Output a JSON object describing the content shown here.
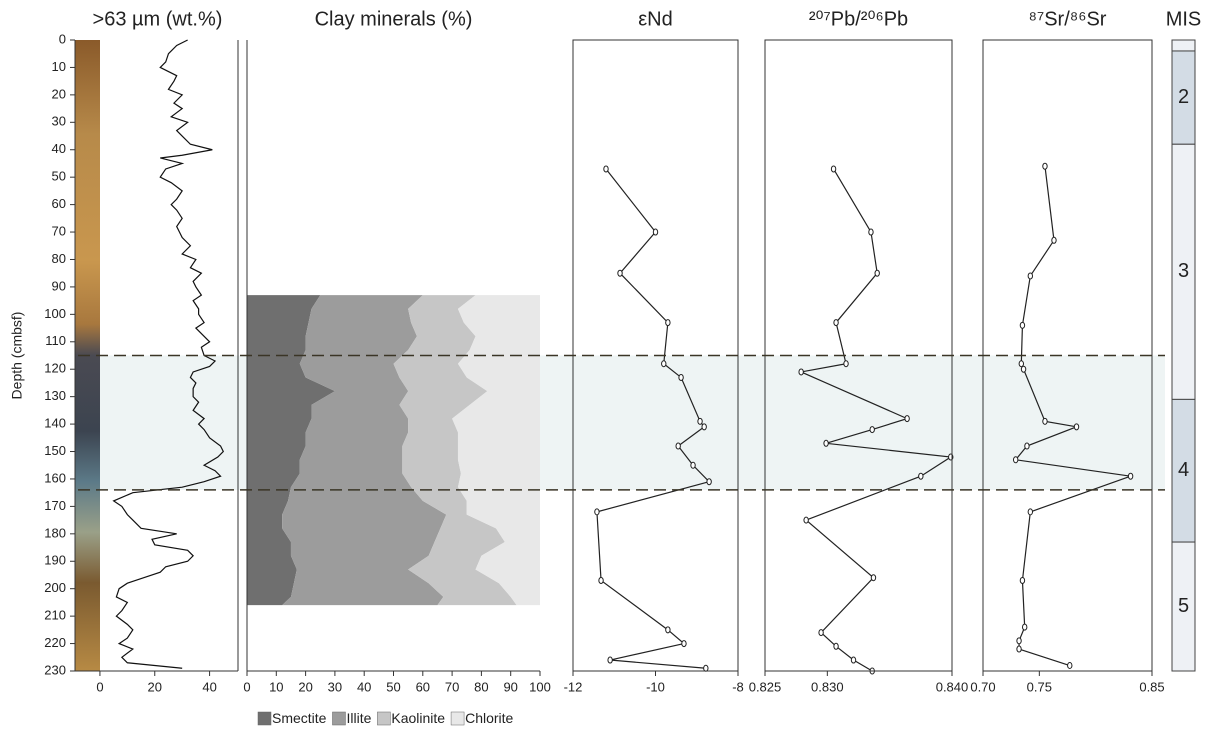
{
  "band": [
    115,
    164
  ],
  "chart_data": [
    {
      "type": "line",
      "title": ">63 µm (wt.%)",
      "y_label": "Depth (cmbsf)",
      "ylim": [
        0,
        230
      ],
      "yticks": [
        0,
        10,
        20,
        30,
        40,
        50,
        60,
        70,
        80,
        90,
        100,
        110,
        120,
        130,
        140,
        150,
        160,
        170,
        180,
        190,
        200,
        210,
        220,
        230
      ],
      "xlim": [
        -8,
        50
      ],
      "xticks": [
        0,
        20,
        40
      ],
      "series": [
        {
          "color": "#111111",
          "y": [
            0,
            2,
            5,
            8,
            10,
            13,
            15,
            18,
            20,
            23,
            25,
            28,
            30,
            33,
            35,
            38,
            40,
            42,
            43,
            45,
            47,
            50,
            52,
            55,
            58,
            60,
            62,
            65,
            68,
            70,
            72,
            75,
            78,
            80,
            83,
            85,
            88,
            90,
            93,
            95,
            98,
            100,
            103,
            105,
            108,
            110,
            112,
            115,
            117,
            119,
            121,
            123,
            125,
            127,
            130,
            132,
            135,
            138,
            140,
            142,
            145,
            148,
            150,
            152,
            155,
            157,
            159,
            161,
            163,
            165,
            168,
            170,
            173,
            175,
            178,
            180,
            182,
            184,
            186,
            188,
            190,
            192,
            194,
            196,
            198,
            200,
            203,
            205,
            208,
            210,
            213,
            215,
            218,
            220,
            222,
            225,
            227,
            229
          ],
          "values": [
            32,
            28,
            25,
            24,
            22,
            28,
            27,
            25,
            30,
            27,
            30,
            26,
            32,
            28,
            30,
            33,
            41,
            30,
            22,
            30,
            24,
            22,
            26,
            30,
            28,
            26,
            28,
            30,
            28,
            29,
            30,
            33,
            30,
            35,
            33,
            37,
            34,
            35,
            37,
            34,
            36,
            36,
            38,
            35,
            38,
            40,
            37,
            38,
            42,
            40,
            34,
            33,
            35,
            34,
            34,
            36,
            34,
            38,
            36,
            38,
            40,
            44,
            45,
            43,
            38,
            42,
            44,
            38,
            30,
            12,
            5,
            8,
            10,
            12,
            15,
            28,
            19,
            20,
            32,
            34,
            32,
            24,
            22,
            16,
            10,
            7,
            6,
            10,
            8,
            6,
            10,
            12,
            10,
            7,
            12,
            8,
            10,
            30
          ]
        }
      ]
    },
    {
      "type": "stacked-area",
      "title": "Clay minerals (%)",
      "ylim": [
        0,
        230
      ],
      "xlim": [
        0,
        100
      ],
      "xticks": [
        0,
        10,
        20,
        30,
        40,
        50,
        60,
        70,
        80,
        90,
        100
      ],
      "y": [
        93,
        98,
        103,
        108,
        113,
        118,
        123,
        128,
        133,
        138,
        143,
        148,
        153,
        158,
        163,
        168,
        173,
        178,
        183,
        188,
        193,
        198,
        203,
        206
      ],
      "series": [
        {
          "name": "Smectite",
          "color": "#6f6f6f",
          "values": [
            25,
            22,
            21,
            20,
            20,
            18,
            20,
            30,
            22,
            22,
            20,
            20,
            18,
            18,
            15,
            14,
            12,
            12,
            15,
            15,
            17,
            16,
            15,
            12
          ]
        },
        {
          "name": "Illite",
          "color": "#9c9c9c",
          "values": [
            35,
            33,
            35,
            38,
            35,
            32,
            32,
            25,
            30,
            33,
            35,
            33,
            35,
            35,
            41,
            46,
            56,
            54,
            49,
            47,
            38,
            46,
            52,
            53
          ]
        },
        {
          "name": "Kaolinite",
          "color": "#c6c6c6",
          "values": [
            18,
            17,
            18,
            20,
            21,
            22,
            23,
            27,
            24,
            15,
            17,
            19,
            19,
            20,
            16,
            15,
            7,
            19,
            24,
            18,
            23,
            24,
            23,
            27
          ]
        },
        {
          "name": "Chlorite",
          "color": "#e8e8e8",
          "values": [
            22,
            28,
            26,
            22,
            24,
            28,
            25,
            18,
            24,
            30,
            28,
            28,
            28,
            27,
            28,
            25,
            25,
            15,
            12,
            20,
            22,
            14,
            10,
            8
          ]
        }
      ]
    },
    {
      "type": "line",
      "title": "εNd",
      "ylim": [
        0,
        230
      ],
      "xlim": [
        -12,
        -8
      ],
      "xticks": [
        -12,
        -10,
        -8
      ],
      "series": [
        {
          "color": "#222222",
          "y": [
            47,
            70,
            85,
            103,
            118,
            123,
            139,
            141,
            148,
            155,
            161,
            172,
            197,
            215,
            220,
            226,
            229
          ],
          "values": [
            -11.2,
            -10.0,
            -10.86,
            -9.7,
            -9.8,
            -9.38,
            -8.92,
            -8.82,
            -9.45,
            -9.09,
            -8.7,
            -11.42,
            -11.32,
            -9.7,
            -9.31,
            -11.1,
            -8.78
          ]
        }
      ]
    },
    {
      "type": "line",
      "title": "²⁰⁷Pb/²⁰⁶Pb",
      "ylim": [
        0,
        230
      ],
      "xlim": [
        0.825,
        0.84
      ],
      "xticks": [
        0.825,
        {
          "value": 0.83,
          "label": "0.830"
        },
        {
          "value": 0.84,
          "label": "0.840"
        }
      ],
      "series": [
        {
          "color": "#222222",
          "y": [
            47,
            70,
            85,
            103,
            118,
            121,
            138,
            142,
            147,
            152,
            159,
            175,
            196,
            216,
            221,
            226,
            230
          ],
          "values": [
            0.8305,
            0.8335,
            0.834,
            0.8307,
            0.8315,
            0.8279,
            0.8364,
            0.8336,
            0.8299,
            0.8399,
            0.8375,
            0.8283,
            0.8337,
            0.8295,
            0.8307,
            0.8321,
            0.8336
          ]
        }
      ]
    },
    {
      "type": "line",
      "title": "⁸⁷Sr/⁸⁶Sr",
      "ylim": [
        0,
        230
      ],
      "xlim": [
        0.7,
        0.85
      ],
      "xticks": [
        {
          "value": 0.7,
          "label": "0.70"
        },
        0.75,
        0.85
      ],
      "series": [
        {
          "color": "#222222",
          "y": [
            46,
            73,
            86,
            104,
            118,
            120,
            139,
            141,
            148,
            153,
            159,
            172,
            197,
            214,
            219,
            222,
            228
          ],
          "values": [
            0.755,
            0.763,
            0.742,
            0.735,
            0.734,
            0.736,
            0.755,
            0.783,
            0.739,
            0.729,
            0.831,
            0.742,
            0.735,
            0.737,
            0.732,
            0.732,
            0.777
          ]
        }
      ]
    },
    {
      "type": "intervals",
      "title": "MIS",
      "ylim": [
        0,
        230
      ],
      "bounds": [
        0,
        4,
        38,
        131,
        183,
        230
      ],
      "labels": [
        null,
        "2",
        "3",
        "4",
        "5"
      ],
      "colors": [
        "#eef1f5",
        "#d3dce5",
        "#eef1f5",
        "#d3dce5",
        "#eef1f5"
      ]
    }
  ]
}
